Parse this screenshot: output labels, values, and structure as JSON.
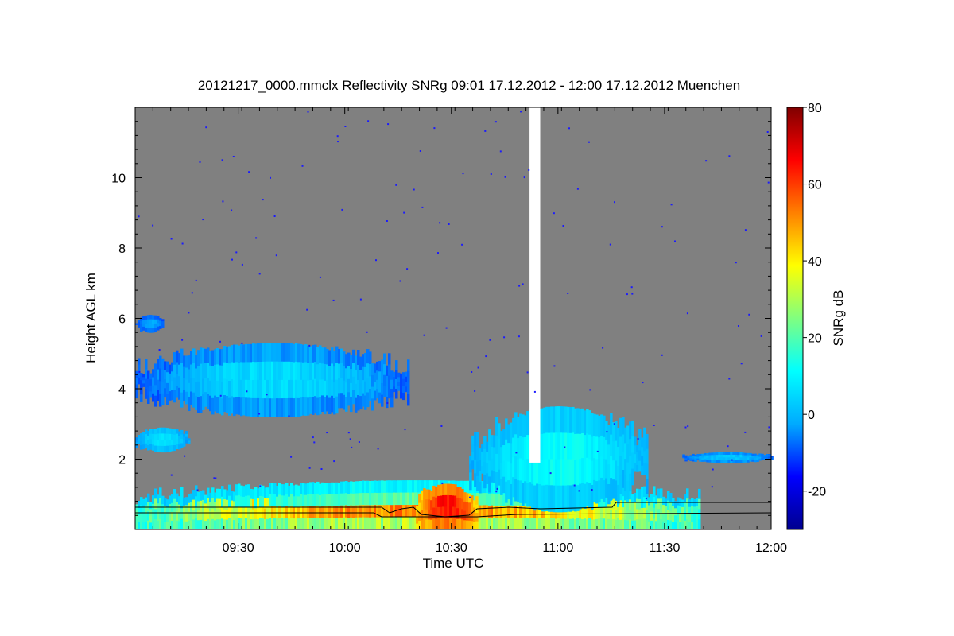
{
  "chart_data": {
    "type": "heatmap",
    "title": "20121217_0000.mmclx Reflectivity SNRg   09:01 17.12.2012 - 12:00 17.12.2012 Muenchen",
    "xlabel": "Time UTC",
    "ylabel": "Height AGL km",
    "colorbar_label": "SNRg dB",
    "x_range": [
      "09:01",
      "12:00"
    ],
    "x_ticks": [
      "09:30",
      "10:00",
      "10:30",
      "11:00",
      "11:30",
      "12:00"
    ],
    "y_range": [
      0,
      12
    ],
    "y_ticks": [
      2,
      4,
      6,
      8,
      10
    ],
    "colorbar_range": [
      -30,
      80
    ],
    "colorbar_ticks": [
      -20,
      0,
      20,
      40,
      60,
      80
    ],
    "background_color": "#808080",
    "colormap": [
      "#00008f",
      "#0000ff",
      "#00aaff",
      "#00ffff",
      "#80ff80",
      "#ffff00",
      "#ff8000",
      "#ff0000",
      "#800000"
    ],
    "features": [
      {
        "name": "upper cloud layer",
        "time": [
          "09:01",
          "10:18"
        ],
        "height_km": [
          3.2,
          5.3
        ],
        "snr_db": [
          -20,
          10
        ]
      },
      {
        "name": "isolated echo",
        "time": [
          "09:01",
          "09:09"
        ],
        "height_km": [
          5.6,
          6.1
        ],
        "snr_db": [
          -15,
          0
        ]
      },
      {
        "name": "mid-level echo",
        "time": [
          "09:01",
          "09:16"
        ],
        "height_km": [
          2.2,
          2.9
        ],
        "snr_db": [
          -10,
          10
        ]
      },
      {
        "name": "boundary layer echo",
        "time": [
          "09:01",
          "11:40"
        ],
        "height_km": [
          0,
          1.4
        ],
        "snr_db": [
          -10,
          70
        ]
      },
      {
        "name": "precipitation core",
        "time": [
          "10:20",
          "10:37"
        ],
        "height_km": [
          0,
          1.3
        ],
        "snr_db": [
          30,
          70
        ]
      },
      {
        "name": "convective tops",
        "time": [
          "10:35",
          "11:25"
        ],
        "height_km": [
          0.5,
          3.5
        ],
        "snr_db": [
          -10,
          15
        ]
      },
      {
        "name": "thin layer",
        "time": [
          "11:35",
          "12:00"
        ],
        "height_km": [
          1.9,
          2.2
        ],
        "snr_db": [
          -15,
          5
        ]
      },
      {
        "name": "data gap",
        "time": [
          "10:52",
          "10:55"
        ],
        "height_km": [
          1.9,
          12
        ],
        "snr_db": null
      }
    ]
  }
}
